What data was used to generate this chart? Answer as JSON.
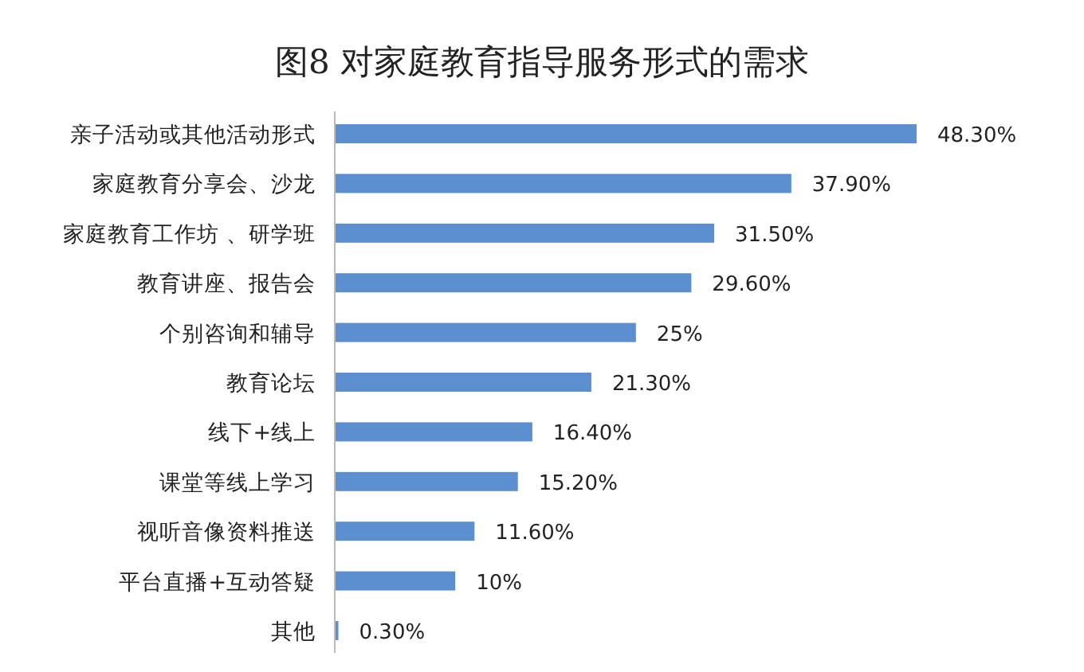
{
  "chart_data": {
    "type": "bar",
    "orientation": "horizontal",
    "title": "图8 对家庭教育指导服务形式的需求",
    "categories": [
      "亲子活动或其他活动形式",
      "家庭教育分享会、沙龙",
      "家庭教育工作坊 、研学班",
      "教育讲座、报告会",
      "个别咨询和辅导",
      "教育论坛",
      "线下+线上",
      "课堂等线上学习",
      "视听音像资料推送",
      "平台直播+互动答疑",
      "其他"
    ],
    "values": [
      48.3,
      37.9,
      31.5,
      29.6,
      25,
      21.3,
      16.4,
      15.2,
      11.6,
      10,
      0.3
    ],
    "value_labels": [
      "48.30%",
      "37.90%",
      "31.50%",
      "29.60%",
      "25%",
      "21.30%",
      "16.40%",
      "15.20%",
      "11.60%",
      "10%",
      "0.30%"
    ],
    "color": "#5b8fcf"
  }
}
